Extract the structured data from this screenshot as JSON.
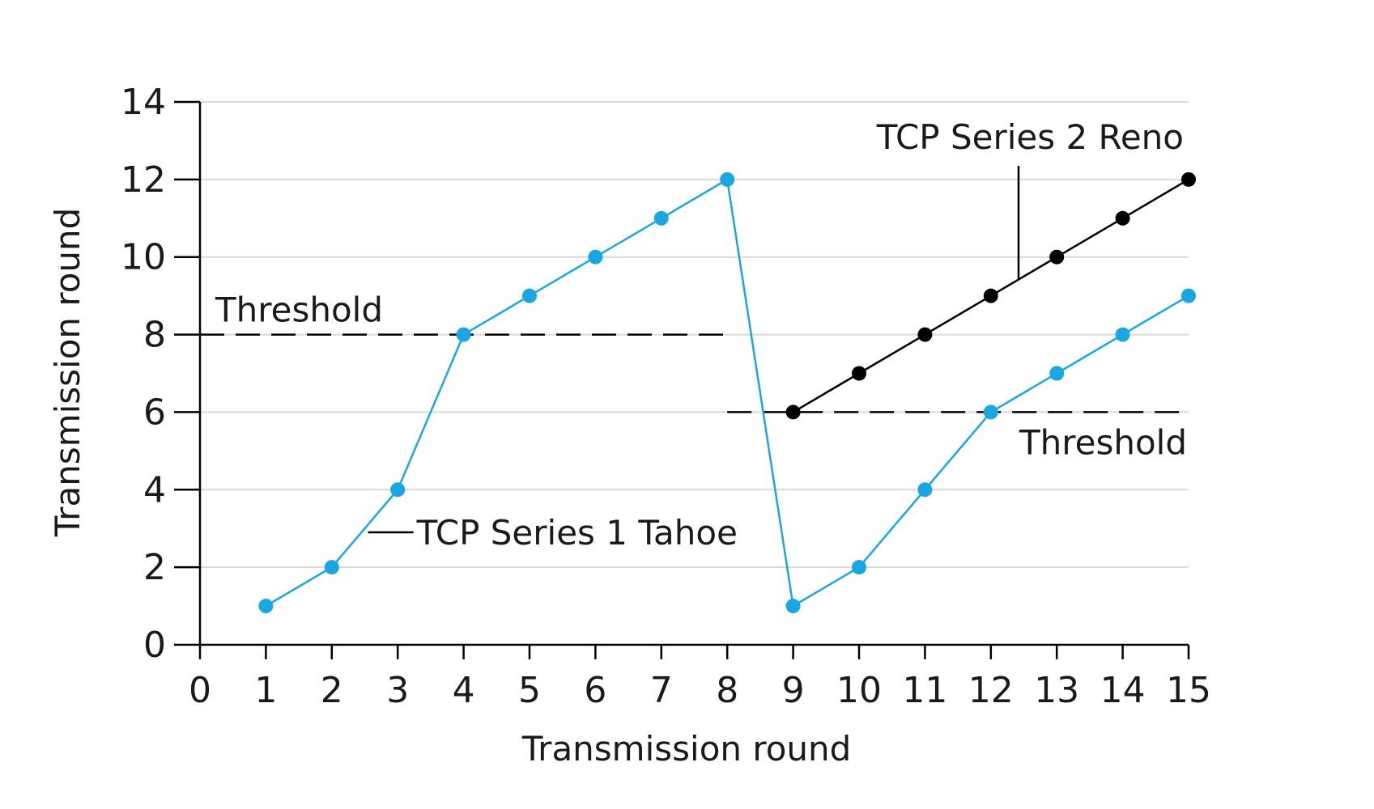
{
  "chart_data": {
    "type": "line",
    "xlabel": "Transmission round",
    "ylabel": "Transmission round",
    "xlim": [
      0,
      15
    ],
    "ylim": [
      0,
      14
    ],
    "x_ticks": [
      "0",
      "1",
      "2",
      "3",
      "4",
      "5",
      "6",
      "7",
      "8",
      "9",
      "10",
      "11",
      "12",
      "13",
      "14",
      "15"
    ],
    "y_ticks": [
      "0",
      "2",
      "4",
      "6",
      "8",
      "10",
      "12",
      "14"
    ],
    "grid": "horizontal",
    "series": [
      {
        "name": "TCP Series 1 Tahoe",
        "color": "#1aa6e0",
        "x": [
          1,
          2,
          3,
          4,
          5,
          6,
          7,
          8,
          9,
          10,
          11,
          12,
          13,
          14,
          15
        ],
        "y": [
          1,
          2,
          4,
          8,
          9,
          10,
          11,
          12,
          1,
          2,
          4,
          6,
          7,
          8,
          9
        ]
      },
      {
        "name": "TCP Series 2 Reno",
        "color": "#000000",
        "x": [
          9,
          10,
          11,
          12,
          13,
          14,
          15
        ],
        "y": [
          6,
          7,
          8,
          9,
          10,
          11,
          12
        ]
      }
    ],
    "thresholds": [
      {
        "label": "Threshold",
        "y": 8,
        "x_range": [
          0,
          8
        ]
      },
      {
        "label": "Threshold",
        "y": 6,
        "x_range": [
          8,
          15
        ]
      }
    ],
    "annotations": {
      "tahoe_label": "TCP Series 1 Tahoe",
      "reno_label": "TCP Series 2 Reno"
    }
  }
}
